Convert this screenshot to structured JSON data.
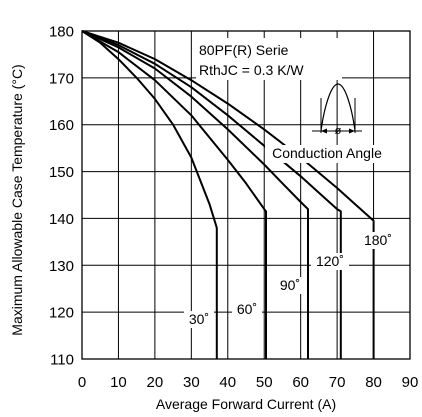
{
  "chart_data": {
    "type": "line",
    "xlabel": "Average Forward Current (A)",
    "ylabel": "Maximum Allowable Case Temperature (°C)",
    "xlim": [
      0,
      90
    ],
    "ylim": [
      110,
      180
    ],
    "xticks": [
      "0",
      "10",
      "20",
      "30",
      "40",
      "50",
      "60",
      "70",
      "80",
      "90"
    ],
    "yticks": [
      "110",
      "120",
      "130",
      "140",
      "150",
      "160",
      "170",
      "180"
    ],
    "grid": true,
    "annotations": {
      "device": "80PF(R) Serie",
      "rthjc": "RthJC = 0.3 K/W",
      "conduction_angle": "Conduction Angle",
      "phi": "ø"
    },
    "series": [
      {
        "name": "30˚",
        "x": [
          0,
          5,
          10,
          15,
          20,
          25,
          30,
          35,
          37,
          37
        ],
        "y": [
          180,
          177.5,
          174,
          170,
          165.5,
          160,
          153,
          143,
          138,
          110
        ]
      },
      {
        "name": "60˚",
        "x": [
          0,
          10,
          20,
          30,
          40,
          45,
          50,
          50.5,
          50.5
        ],
        "y": [
          180,
          175.5,
          169.5,
          162,
          152.5,
          147.5,
          142,
          141.5,
          110
        ]
      },
      {
        "name": "90˚",
        "x": [
          0,
          10,
          20,
          30,
          40,
          50,
          55,
          60,
          62,
          62
        ],
        "y": [
          180,
          176.5,
          172,
          166,
          159,
          151.5,
          147.5,
          143.5,
          142,
          110
        ]
      },
      {
        "name": "120˚",
        "x": [
          0,
          10,
          20,
          30,
          40,
          50,
          60,
          65,
          70,
          71,
          71
        ],
        "y": [
          180,
          177,
          173,
          168,
          162,
          155.5,
          149,
          145.5,
          142,
          141.5,
          110
        ]
      },
      {
        "name": "180˚",
        "x": [
          0,
          10,
          20,
          30,
          40,
          50,
          60,
          70,
          75,
          80,
          80
        ],
        "y": [
          180,
          177.5,
          174,
          169.5,
          164.5,
          159,
          153,
          146.5,
          143,
          139.5,
          110
        ]
      }
    ]
  }
}
